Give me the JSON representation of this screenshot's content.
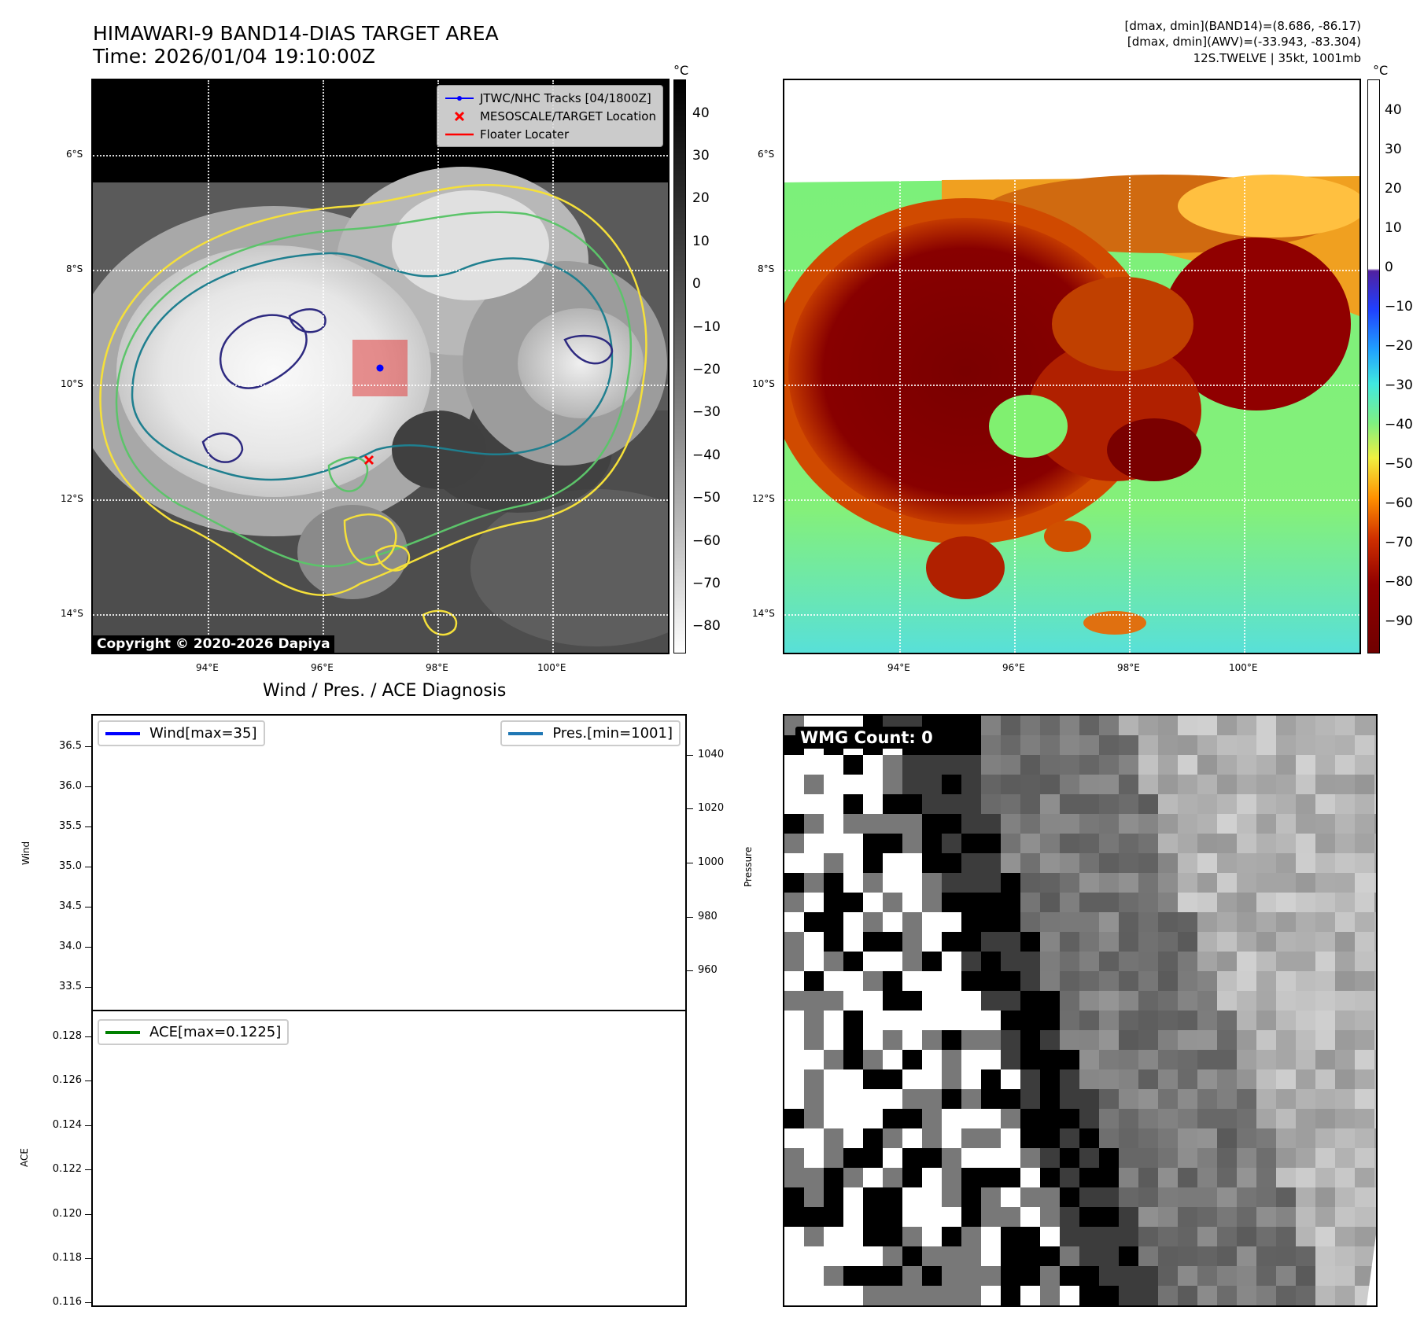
{
  "header": {
    "title_line1": "HIMAWARI-9 BAND14-DIAS TARGET AREA",
    "title_line2": "Time: 2026/01/04 19:10:00Z",
    "info_line1": "[dmax, dmin](BAND14)=(8.686, -86.17)",
    "info_line2": "[dmax, dmin](AWV)=(-33.943, -83.304)",
    "info_line3": "12S.TWELVE | 35kt, 1001mb"
  },
  "map_axes": {
    "lat_ticks": [
      "6°S",
      "8°S",
      "10°S",
      "12°S",
      "14°S"
    ],
    "lon_ticks": [
      "94°E",
      "96°E",
      "98°E",
      "100°E"
    ]
  },
  "ir_panel": {
    "legend": {
      "tracks": "JTWC/NHC Tracks [04/1800Z]",
      "target": "MESOSCALE/TARGET Location",
      "floater": "Floater Locater"
    },
    "copyright": "Copyright © 2020-2026 Dapiya",
    "colorbar_unit": "°C",
    "colorbar_ticks": [
      "40",
      "30",
      "20",
      "10",
      "0",
      "−10",
      "−20",
      "−30",
      "−40",
      "−50",
      "−60",
      "−70",
      "−80"
    ]
  },
  "awv_panel": {
    "colorbar_unit": "°C",
    "colorbar_ticks": [
      "40",
      "30",
      "20",
      "10",
      "0",
      "−10",
      "−20",
      "−30",
      "−40",
      "−50",
      "−60",
      "−70",
      "−80",
      "−90"
    ]
  },
  "diagnosis": {
    "title": "Wind / Pres. / ACE Diagnosis",
    "wind_legend": "Wind[max=35]",
    "pres_legend": "Pres.[min=1001]",
    "ace_legend": "ACE[max=0.1225]",
    "wind_label": "Wind",
    "pres_label": "Pressure",
    "ace_label": "ACE",
    "wind_ticks": [
      "36.5",
      "36.0",
      "35.5",
      "35.0",
      "34.5",
      "34.0",
      "33.5"
    ],
    "pres_ticks": [
      "1040",
      "1020",
      "1000",
      "980",
      "960"
    ],
    "ace_ticks": [
      "0.128",
      "0.126",
      "0.124",
      "0.122",
      "0.120",
      "0.118",
      "0.116"
    ],
    "colors": {
      "wind": "#0000ff",
      "pres": "#1f77b4",
      "ace": "#008000"
    }
  },
  "wmg_panel": {
    "label": "WMG Count: 0"
  },
  "chart_data": [
    {
      "type": "heatmap",
      "title": "HIMAWARI-9 BAND14-DIAS TARGET AREA",
      "lat_range": [
        "14.7°S",
        "5°S"
      ],
      "lon_range": [
        "92°E",
        "102°E"
      ],
      "colorbar_range": [
        -86.17,
        48
      ],
      "colormap": "grayscale (warm dark, cold white)",
      "track_point": {
        "lat": "9.7°S",
        "lon": "97.0°E"
      },
      "target_point": {
        "lat": "11.3°S",
        "lon": "96.8°E"
      }
    },
    {
      "type": "heatmap",
      "title": "AWV",
      "lat_range": [
        "14.7°S",
        "5°S"
      ],
      "lon_range": [
        "92°E",
        "102°E"
      ],
      "colorbar_range": [
        -98,
        48
      ],
      "colormap": "jet-like below 0, white above 0"
    },
    {
      "type": "line",
      "series": [
        {
          "name": "Wind[max=35]",
          "values": []
        },
        {
          "name": "Pres.[min=1001]",
          "values": []
        }
      ],
      "ylim_wind": [
        33.2,
        36.9
      ],
      "ylim_pres": [
        945,
        1055
      ]
    },
    {
      "type": "line",
      "series": [
        {
          "name": "ACE[max=0.1225]",
          "values": []
        }
      ],
      "ylim": [
        0.1158,
        0.1292
      ]
    }
  ]
}
